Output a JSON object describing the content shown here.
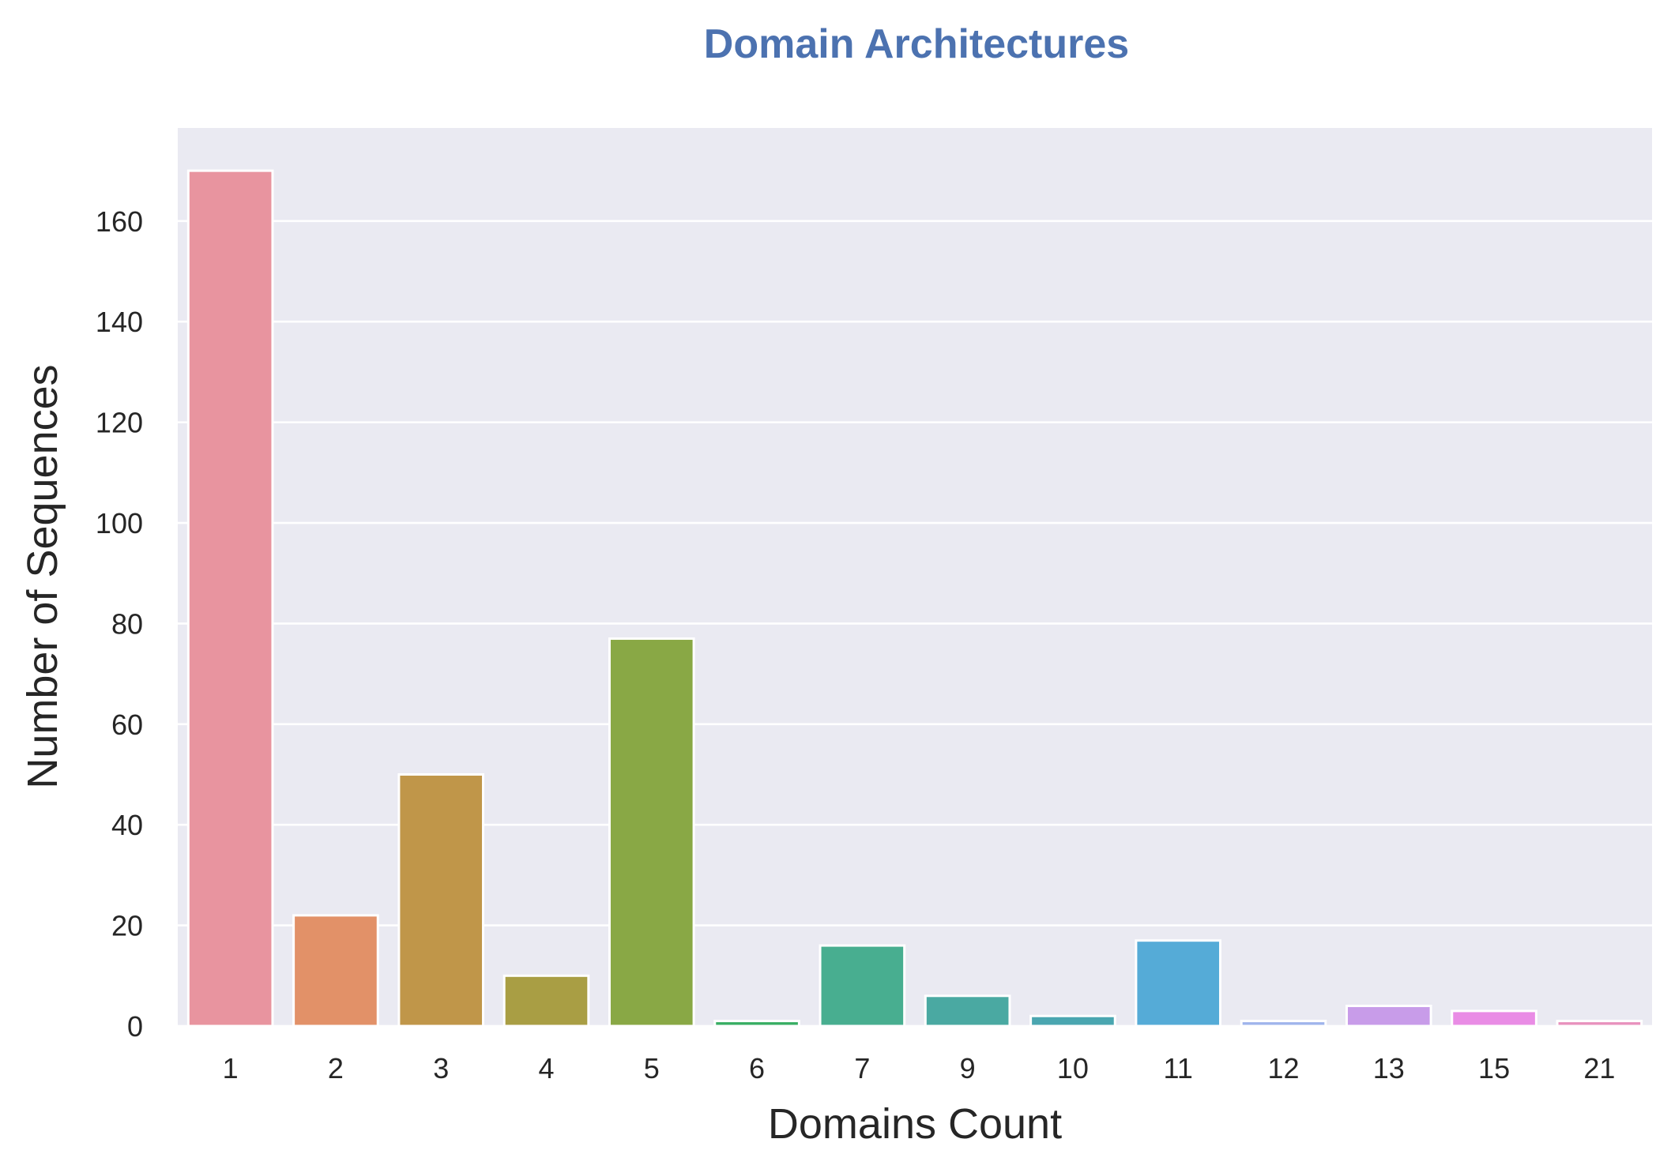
{
  "chart_data": {
    "type": "bar",
    "title": "Domain Architectures",
    "xlabel": "Domains Count",
    "ylabel": "Number of Sequences",
    "categories": [
      "1",
      "2",
      "3",
      "4",
      "5",
      "6",
      "7",
      "9",
      "10",
      "11",
      "12",
      "13",
      "15",
      "21"
    ],
    "values": [
      170,
      22,
      50,
      10,
      77,
      1,
      16,
      6,
      2,
      17,
      1,
      4,
      3,
      1
    ],
    "ylim": [
      0,
      178.5
    ],
    "yticks": [
      0,
      20,
      40,
      60,
      80,
      100,
      120,
      140,
      160
    ],
    "grid": true,
    "legend": "none",
    "colors": {
      "title": "#4c72b0",
      "plot_background": "#eaeaf2",
      "grid": "#ffffff",
      "bar_edge": "#ffffff",
      "bars": [
        "#e8949f",
        "#e29168",
        "#c09649",
        "#a99e44",
        "#89a845",
        "#37ad63",
        "#48ae90",
        "#4aa9a2",
        "#4aa6b0",
        "#55abd7",
        "#9fb4ec",
        "#c89ce9",
        "#e98ce5",
        "#e891bd"
      ]
    }
  }
}
